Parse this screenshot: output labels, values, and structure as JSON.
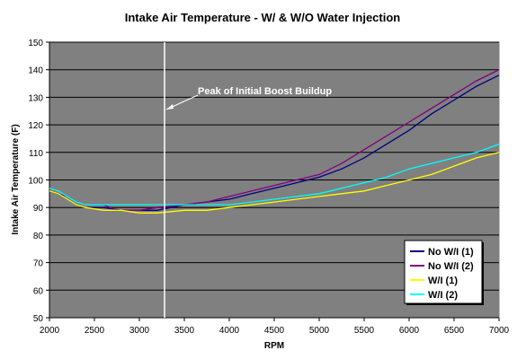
{
  "chart_data": {
    "type": "line",
    "title": "Intake Air Temperature - W/ & W/O Water Injection",
    "xlabel": "RPM",
    "ylabel": "Intake Air Temperature (F)",
    "xlim": [
      2000,
      7000
    ],
    "ylim": [
      50,
      150
    ],
    "xticks": [
      2000,
      2500,
      3000,
      3500,
      4000,
      4500,
      5000,
      5500,
      6000,
      6500,
      7000
    ],
    "yticks": [
      50,
      60,
      70,
      80,
      90,
      100,
      110,
      120,
      130,
      140,
      150
    ],
    "grid": "horizontal",
    "plot_background": "#808080",
    "legend_position": "bottom-right",
    "annotation": {
      "text": "Peak of Initial Boost Buildup",
      "x": 3280
    },
    "series": [
      {
        "name": "No W/I (1)",
        "color": "#000080",
        "points": [
          [
            2000,
            96
          ],
          [
            2100,
            95
          ],
          [
            2200,
            93
          ],
          [
            2300,
            91
          ],
          [
            2400,
            90
          ],
          [
            2600,
            90
          ],
          [
            2800,
            89
          ],
          [
            2900,
            89
          ],
          [
            3000,
            89
          ],
          [
            3200,
            89
          ],
          [
            3500,
            91
          ],
          [
            4000,
            93
          ],
          [
            4250,
            95
          ],
          [
            4500,
            97
          ],
          [
            4750,
            99
          ],
          [
            5000,
            101
          ],
          [
            5250,
            104
          ],
          [
            5500,
            108
          ],
          [
            5750,
            113
          ],
          [
            6000,
            118
          ],
          [
            6250,
            124
          ],
          [
            6500,
            129
          ],
          [
            6750,
            134
          ],
          [
            7000,
            138
          ]
        ]
      },
      {
        "name": "No W/I (2)",
        "color": "#800080",
        "points": [
          [
            2000,
            96
          ],
          [
            2100,
            95
          ],
          [
            2200,
            94
          ],
          [
            2300,
            92
          ],
          [
            2400,
            91
          ],
          [
            2600,
            91
          ],
          [
            2750,
            89
          ],
          [
            2900,
            89
          ],
          [
            3000,
            89
          ],
          [
            3200,
            90
          ],
          [
            3500,
            91
          ],
          [
            3750,
            92
          ],
          [
            4000,
            94
          ],
          [
            4250,
            96
          ],
          [
            4500,
            98
          ],
          [
            4750,
            100
          ],
          [
            5000,
            102
          ],
          [
            5250,
            106
          ],
          [
            5500,
            111
          ],
          [
            5750,
            116
          ],
          [
            6000,
            121
          ],
          [
            6250,
            126
          ],
          [
            6500,
            131
          ],
          [
            6750,
            136
          ],
          [
            7000,
            140
          ]
        ]
      },
      {
        "name": "W/I (1)",
        "color": "#ffff00",
        "points": [
          [
            2000,
            96
          ],
          [
            2100,
            95
          ],
          [
            2200,
            93
          ],
          [
            2300,
            91
          ],
          [
            2400,
            90
          ],
          [
            2600,
            89
          ],
          [
            2800,
            89
          ],
          [
            3000,
            88
          ],
          [
            3200,
            88
          ],
          [
            3500,
            89
          ],
          [
            3750,
            89
          ],
          [
            4000,
            90
          ],
          [
            4250,
            91
          ],
          [
            4500,
            92
          ],
          [
            4750,
            93
          ],
          [
            5000,
            94
          ],
          [
            5250,
            95
          ],
          [
            5500,
            96
          ],
          [
            5750,
            98
          ],
          [
            6000,
            100
          ],
          [
            6250,
            102
          ],
          [
            6500,
            105
          ],
          [
            6750,
            108
          ],
          [
            7000,
            110
          ]
        ]
      },
      {
        "name": "W/I (2)",
        "color": "#00ffff",
        "points": [
          [
            2000,
            97
          ],
          [
            2100,
            96
          ],
          [
            2200,
            94
          ],
          [
            2300,
            92
          ],
          [
            2400,
            91
          ],
          [
            2600,
            91
          ],
          [
            2800,
            91
          ],
          [
            2900,
            91
          ],
          [
            3000,
            91
          ],
          [
            3200,
            91
          ],
          [
            3500,
            91
          ],
          [
            3750,
            91
          ],
          [
            4000,
            91
          ],
          [
            4250,
            92
          ],
          [
            4500,
            93
          ],
          [
            4750,
            94
          ],
          [
            5000,
            95
          ],
          [
            5250,
            97
          ],
          [
            5500,
            99
          ],
          [
            5750,
            101
          ],
          [
            6000,
            104
          ],
          [
            6250,
            106
          ],
          [
            6500,
            108
          ],
          [
            6750,
            110
          ],
          [
            7000,
            113
          ]
        ]
      }
    ]
  }
}
